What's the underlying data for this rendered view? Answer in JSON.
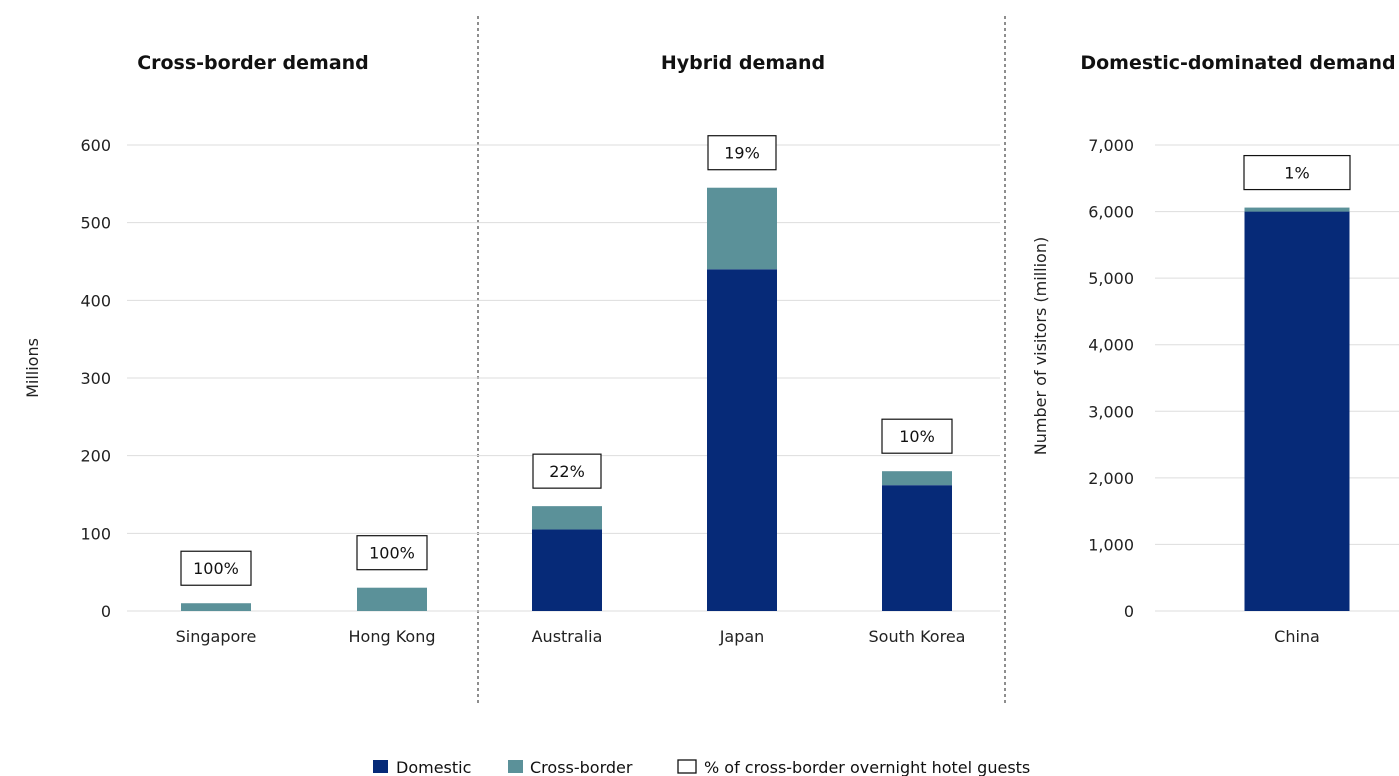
{
  "colors": {
    "domestic": "#062a78",
    "cross_border": "#5b9199",
    "grid": "#dddddd",
    "divider": "#444444"
  },
  "legend": {
    "domestic": "Domestic",
    "cross_border": "Cross-border",
    "pct": "% of cross-border overnight hotel guests"
  },
  "chart_data": [
    {
      "type": "bar",
      "stacked": true,
      "title": "Cross-border demand",
      "ylabel": "Millions",
      "ylim": [
        0,
        600
      ],
      "yticks": [
        "0",
        "100",
        "200",
        "300",
        "400",
        "500",
        "600"
      ],
      "categories": [
        "Singapore",
        "Hong Kong"
      ],
      "series": [
        {
          "name": "Domestic",
          "values": [
            0,
            0
          ]
        },
        {
          "name": "Cross-border",
          "values": [
            10,
            30
          ]
        }
      ],
      "labels": [
        "100%",
        "100%"
      ]
    },
    {
      "type": "bar",
      "stacked": true,
      "title": "Hybrid demand",
      "ylim": [
        0,
        600
      ],
      "categories": [
        "Australia",
        "Japan",
        "South Korea"
      ],
      "series": [
        {
          "name": "Domestic",
          "values": [
            105,
            440,
            162
          ]
        },
        {
          "name": "Cross-border",
          "values": [
            30,
            105,
            18
          ]
        }
      ],
      "labels": [
        "22%",
        "19%",
        "10%"
      ]
    },
    {
      "type": "bar",
      "stacked": true,
      "title": "Domestic-dominated demand",
      "ylabel": "Number of visitors (million)",
      "ylim": [
        0,
        7000
      ],
      "yticks": [
        "0",
        "1,000",
        "2,000",
        "3,000",
        "4,000",
        "5,000",
        "6,000",
        "7,000"
      ],
      "categories": [
        "China"
      ],
      "series": [
        {
          "name": "Domestic",
          "values": [
            6000
          ]
        },
        {
          "name": "Cross-border",
          "values": [
            60
          ]
        }
      ],
      "labels": [
        "1%"
      ]
    }
  ]
}
